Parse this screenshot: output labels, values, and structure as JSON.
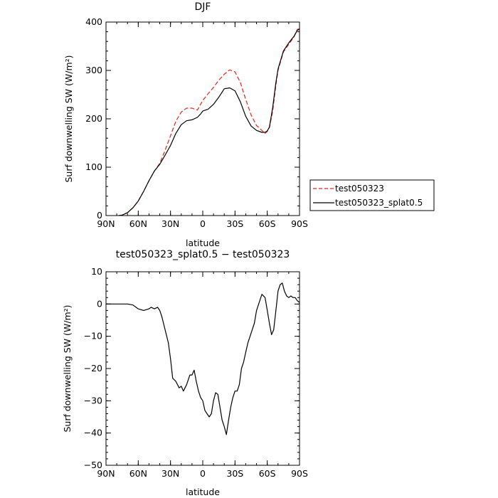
{
  "chart_data": [
    {
      "type": "line",
      "title": "DJF",
      "xlabel": "latitude",
      "ylabel": "Surf downwelling SW (W/m²)",
      "xlim": [
        90,
        -90
      ],
      "ylim": [
        0,
        400
      ],
      "x_tick_values": [
        90,
        60,
        30,
        0,
        -30,
        -60,
        -90
      ],
      "x_tick_labels": [
        "90N",
        "60N",
        "30N",
        "0",
        "30S",
        "60S",
        "90S"
      ],
      "y_tick_values": [
        0,
        100,
        200,
        300,
        400
      ],
      "y_tick_labels": [
        "0",
        "100",
        "200",
        "300",
        "400"
      ],
      "legend": {
        "placement": "right-bottom"
      },
      "series": [
        {
          "name": "test050323",
          "color": "#e8221a",
          "dash": "dashed",
          "x": [
            78,
            75,
            70,
            65,
            60,
            55,
            50,
            45,
            40,
            35,
            30,
            25,
            20,
            15,
            10,
            5,
            2,
            0,
            -5,
            -10,
            -15,
            -20,
            -25,
            -30,
            -35,
            -40,
            -45,
            -50,
            -55,
            -58,
            -60,
            -62,
            -65,
            -68,
            -70,
            -75,
            -80,
            -85,
            -88,
            -90
          ],
          "y": [
            0,
            1,
            6,
            16,
            30,
            50,
            72,
            92,
            108,
            135,
            165,
            195,
            214,
            222,
            222,
            218,
            230,
            238,
            252,
            265,
            280,
            292,
            301,
            297,
            275,
            240,
            208,
            186,
            176,
            170,
            174,
            182,
            215,
            270,
            300,
            338,
            354,
            370,
            385,
            386
          ]
        },
        {
          "name": "test050323_splat0.5",
          "color": "#000000",
          "dash": "solid",
          "x": [
            78,
            75,
            70,
            65,
            60,
            55,
            50,
            45,
            40,
            35,
            30,
            25,
            20,
            15,
            10,
            5,
            2,
            0,
            -5,
            -10,
            -15,
            -20,
            -25,
            -30,
            -35,
            -40,
            -45,
            -50,
            -55,
            -58,
            -60,
            -62,
            -65,
            -68,
            -70,
            -75,
            -80,
            -85,
            -88,
            -90
          ],
          "y": [
            0,
            1,
            6,
            16,
            30,
            50,
            72,
            92,
            106,
            125,
            145,
            170,
            188,
            196,
            198,
            203,
            210,
            216,
            220,
            230,
            245,
            262,
            264,
            258,
            235,
            205,
            185,
            176,
            172,
            172,
            175,
            183,
            222,
            275,
            303,
            340,
            357,
            371,
            383,
            385
          ]
        }
      ]
    },
    {
      "type": "line",
      "title": "test050323_splat0.5 − test050323",
      "xlabel": "latitude",
      "ylabel": "Surf downwelling SW (W/m²)",
      "xlim": [
        90,
        -90
      ],
      "ylim": [
        -50,
        10
      ],
      "x_tick_values": [
        90,
        60,
        30,
        0,
        -30,
        -60,
        -90
      ],
      "x_tick_labels": [
        "90N",
        "60N",
        "30N",
        "0",
        "30S",
        "60S",
        "90S"
      ],
      "y_tick_values": [
        10,
        0,
        -10,
        -20,
        -30,
        -40,
        -50
      ],
      "y_tick_labels": [
        "10",
        "0",
        "−10",
        "−20",
        "−30",
        "−40",
        "−50"
      ],
      "series": [
        {
          "name": "",
          "color": "#000000",
          "dash": "solid",
          "x": [
            90,
            80,
            70,
            65,
            60,
            55,
            50,
            48,
            45,
            42,
            40,
            38,
            35,
            32,
            30,
            28,
            25,
            22,
            20,
            18,
            15,
            12,
            10,
            8,
            6,
            4,
            2,
            0,
            -2,
            -4,
            -6,
            -8,
            -10,
            -12,
            -14,
            -16,
            -18,
            -20,
            -22,
            -24,
            -26,
            -28,
            -30,
            -32,
            -34,
            -36,
            -38,
            -40,
            -42,
            -44,
            -46,
            -48,
            -50,
            -52,
            -55,
            -58,
            -60,
            -62,
            -64,
            -66,
            -68,
            -70,
            -72,
            -74,
            -76,
            -78,
            -80,
            -82,
            -84,
            -86,
            -88,
            -90
          ],
          "y": [
            0,
            0,
            0,
            -0.3,
            -1.5,
            -2,
            -1.5,
            -1,
            -1.5,
            -1,
            -2,
            -4,
            -8,
            -12,
            -17,
            -23,
            -24,
            -26,
            -25.5,
            -27,
            -25,
            -22,
            -22,
            -20.5,
            -24,
            -27,
            -29,
            -30,
            -33,
            -34,
            -35,
            -34,
            -30,
            -27.5,
            -28,
            -32,
            -36,
            -38,
            -40.5,
            -36,
            -32,
            -29,
            -27,
            -27,
            -25,
            -20,
            -18,
            -15,
            -12,
            -10,
            -8,
            -6,
            -2,
            0,
            3,
            2,
            -2,
            -6,
            -9.5,
            -8,
            -2,
            4,
            6,
            6.5,
            4,
            2.5,
            2,
            2.5,
            2,
            2,
            1,
            0.5
          ]
        }
      ]
    }
  ]
}
